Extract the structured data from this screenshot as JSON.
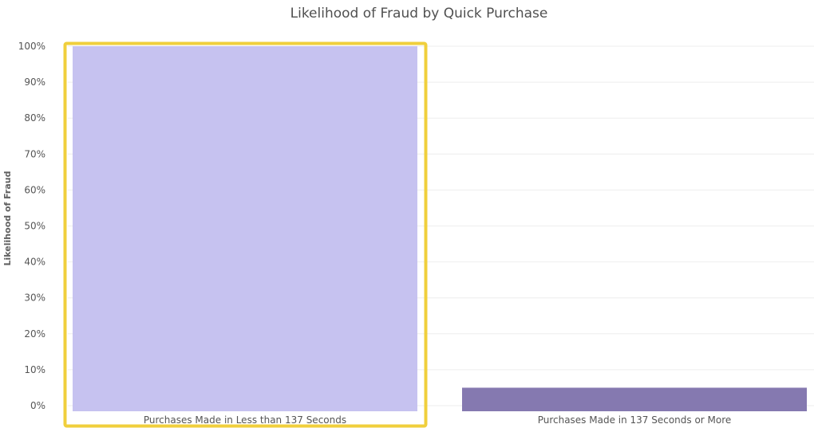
{
  "chart_data": {
    "type": "bar",
    "title": "Likelihood of Fraud by Quick Purchase",
    "xlabel": "",
    "ylabel": "Likelihood of Fraud",
    "categories": [
      "Purchases Made in Less than 137 Seconds",
      "Purchases Made in 137 Seconds or More"
    ],
    "values": [
      100,
      5
    ],
    "ylim": [
      0,
      100
    ],
    "y_ticks": [
      "0%",
      "10%",
      "20%",
      "30%",
      "40%",
      "50%",
      "60%",
      "70%",
      "80%",
      "90%",
      "100%"
    ],
    "grid": true,
    "highlighted_category": "Purchases Made in Less than 137 Seconds",
    "colors": {
      "bar_light": "#c6c2f0",
      "bar_dark": "#8579b0",
      "highlight_border": "#f0cf3c",
      "grid": "#eeeeee"
    }
  }
}
